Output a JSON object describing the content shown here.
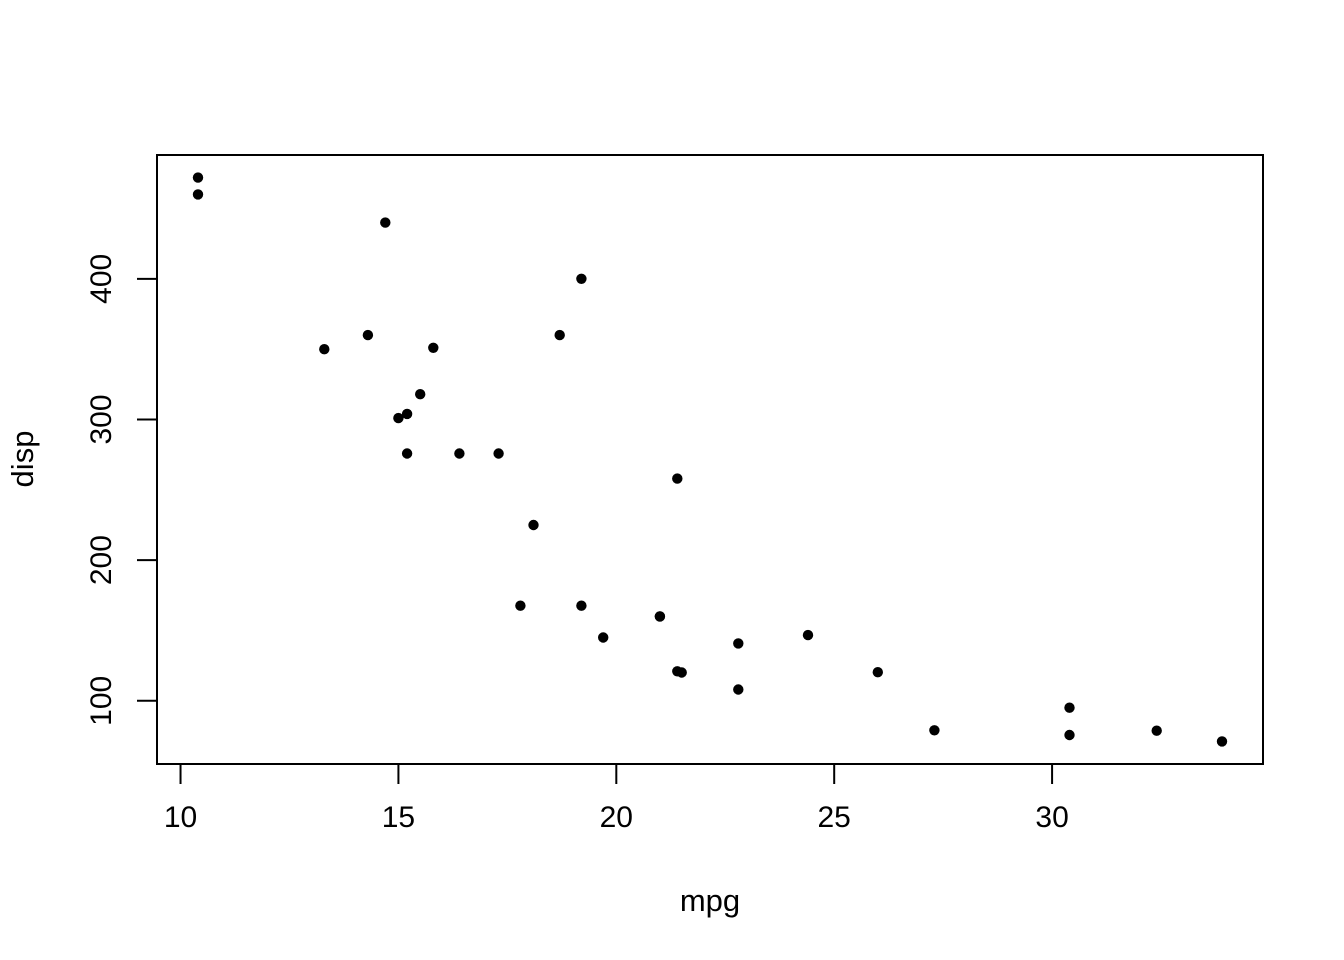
{
  "chart_data": {
    "type": "scatter",
    "title": "",
    "xlabel": "mpg",
    "ylabel": "disp",
    "xlim": [
      9.46,
      34.84
    ],
    "ylim": [
      55.06,
      488.04
    ],
    "x_ticks": [
      10,
      15,
      20,
      25,
      30
    ],
    "y_ticks": [
      100,
      200,
      300,
      400
    ],
    "grid": false,
    "legend": null,
    "background_color": "#ffffff",
    "axis_color": "#000000",
    "point_style": {
      "shape": "filled-circle",
      "color": "#000000",
      "radius_px": 5.2
    },
    "x": [
      21.0,
      21.0,
      22.8,
      21.4,
      18.7,
      18.1,
      14.3,
      24.4,
      22.8,
      19.2,
      17.8,
      16.4,
      17.3,
      15.2,
      10.4,
      10.4,
      14.7,
      32.4,
      30.4,
      33.9,
      21.5,
      15.5,
      15.2,
      13.3,
      19.2,
      27.3,
      26.0,
      30.4,
      15.8,
      19.7,
      15.0,
      21.4
    ],
    "y": [
      160.0,
      160.0,
      108.0,
      258.0,
      360.0,
      225.0,
      360.0,
      146.7,
      140.8,
      167.6,
      167.6,
      275.8,
      275.8,
      275.8,
      472.0,
      460.0,
      440.0,
      78.7,
      75.7,
      71.1,
      120.1,
      318.0,
      304.0,
      350.0,
      400.0,
      79.0,
      120.3,
      95.1,
      351.0,
      145.0,
      301.0,
      121.0
    ]
  }
}
